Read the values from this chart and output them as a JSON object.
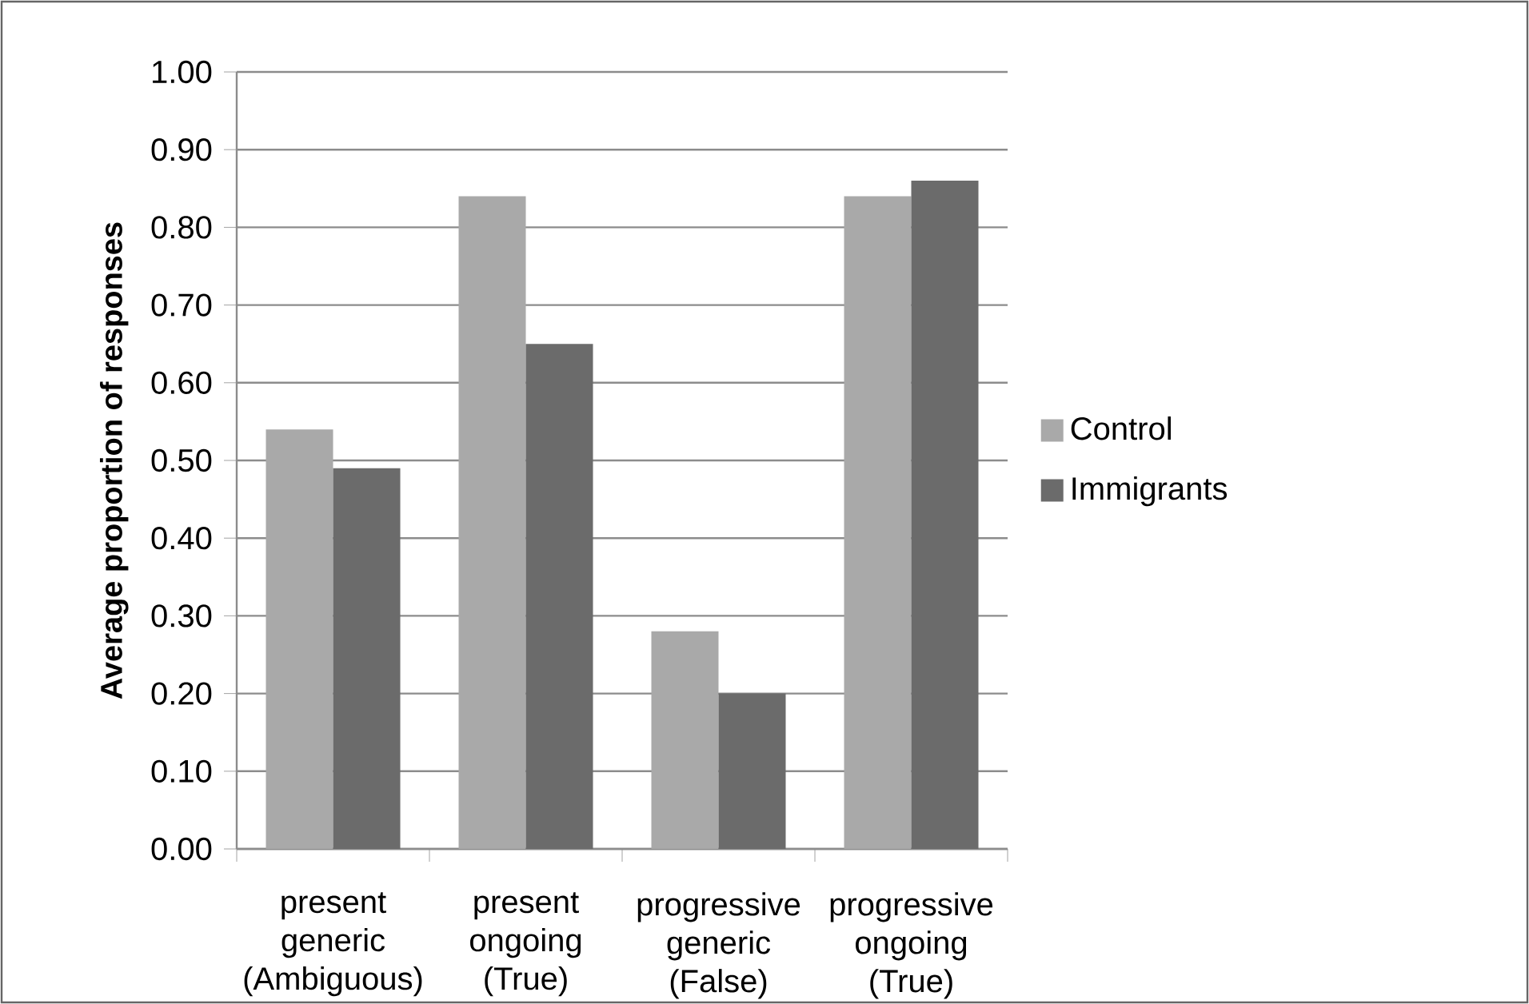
{
  "chart_data": {
    "type": "bar",
    "ylabel": "**Average proportion of responses**",
    "categories": [
      "present generic (Ambiguous)",
      "present ongoing (True)",
      "progressive generic (False)",
      "progressive ongoing (True)"
    ],
    "series": [
      {
        "name": "Control",
        "color": "#a9a9a9",
        "values": [
          0.54,
          0.84,
          0.28,
          0.84
        ]
      },
      {
        "name": "Immigrants",
        "color": "#6b6b6b",
        "values": [
          0.49,
          0.65,
          0.2,
          0.86
        ]
      }
    ],
    "ylim": [
      0,
      1
    ],
    "yticks": [
      {
        "value": 0,
        "label": "0.00"
      },
      {
        "value": 0.1,
        "label": "0.10"
      },
      {
        "value": 0.2,
        "label": "0.20"
      },
      {
        "value": 0.3,
        "label": "0.30"
      },
      {
        "value": 0.4,
        "label": "0.40"
      },
      {
        "value": 0.5,
        "label": "0.50"
      },
      {
        "value": 0.6,
        "label": "0.60"
      },
      {
        "value": 0.7,
        "label": "0.70"
      },
      {
        "value": 0.8,
        "label": "0.80"
      },
      {
        "value": 0.9,
        "label": "0.90"
      },
      {
        "value": 1,
        "label": "1.00"
      }
    ],
    "grid": "y",
    "legend": "right"
  }
}
